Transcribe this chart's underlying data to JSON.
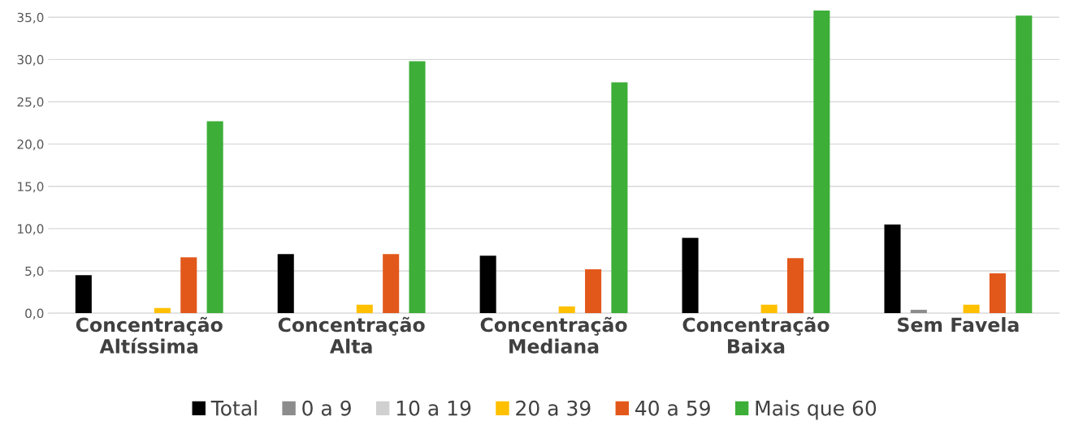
{
  "chart_data": {
    "type": "bar",
    "categories": [
      "Concentração\nAltíssima",
      "Concentração\nAlta",
      "Concentração\nMediana",
      "Concentração\nBaixa",
      "Sem Favela"
    ],
    "series": [
      {
        "name": "Total",
        "color": "#000000",
        "values": [
          4.5,
          7.0,
          6.8,
          8.9,
          10.5
        ]
      },
      {
        "name": "0 a 9",
        "color": "#8c8c8c",
        "values": [
          0,
          0,
          0,
          0,
          0.4
        ]
      },
      {
        "name": "10 a 19",
        "color": "#d0d0d0",
        "values": [
          0,
          0,
          0,
          0,
          0
        ]
      },
      {
        "name": "20 a 39",
        "color": "#ffc000",
        "values": [
          0.6,
          1.0,
          0.8,
          1.0,
          1.0
        ]
      },
      {
        "name": "40 a 59",
        "color": "#e2581b",
        "values": [
          6.6,
          7.0,
          5.2,
          6.5,
          4.7
        ]
      },
      {
        "name": "Mais que 60",
        "color": "#3dae38",
        "values": [
          22.7,
          29.8,
          27.3,
          35.8,
          35.2
        ]
      }
    ],
    "ylim": [
      0,
      36
    ],
    "yticks": [
      {
        "value": 0,
        "label": "0,0"
      },
      {
        "value": 5,
        "label": "5,0"
      },
      {
        "value": 10,
        "label": "10,0"
      },
      {
        "value": 15,
        "label": "15,0"
      },
      {
        "value": 20,
        "label": "20,0"
      },
      {
        "value": 25,
        "label": "25,0"
      },
      {
        "value": 30,
        "label": "30,0"
      },
      {
        "value": 35,
        "label": "35,0"
      }
    ],
    "grid": "y",
    "legend": "bottom"
  }
}
